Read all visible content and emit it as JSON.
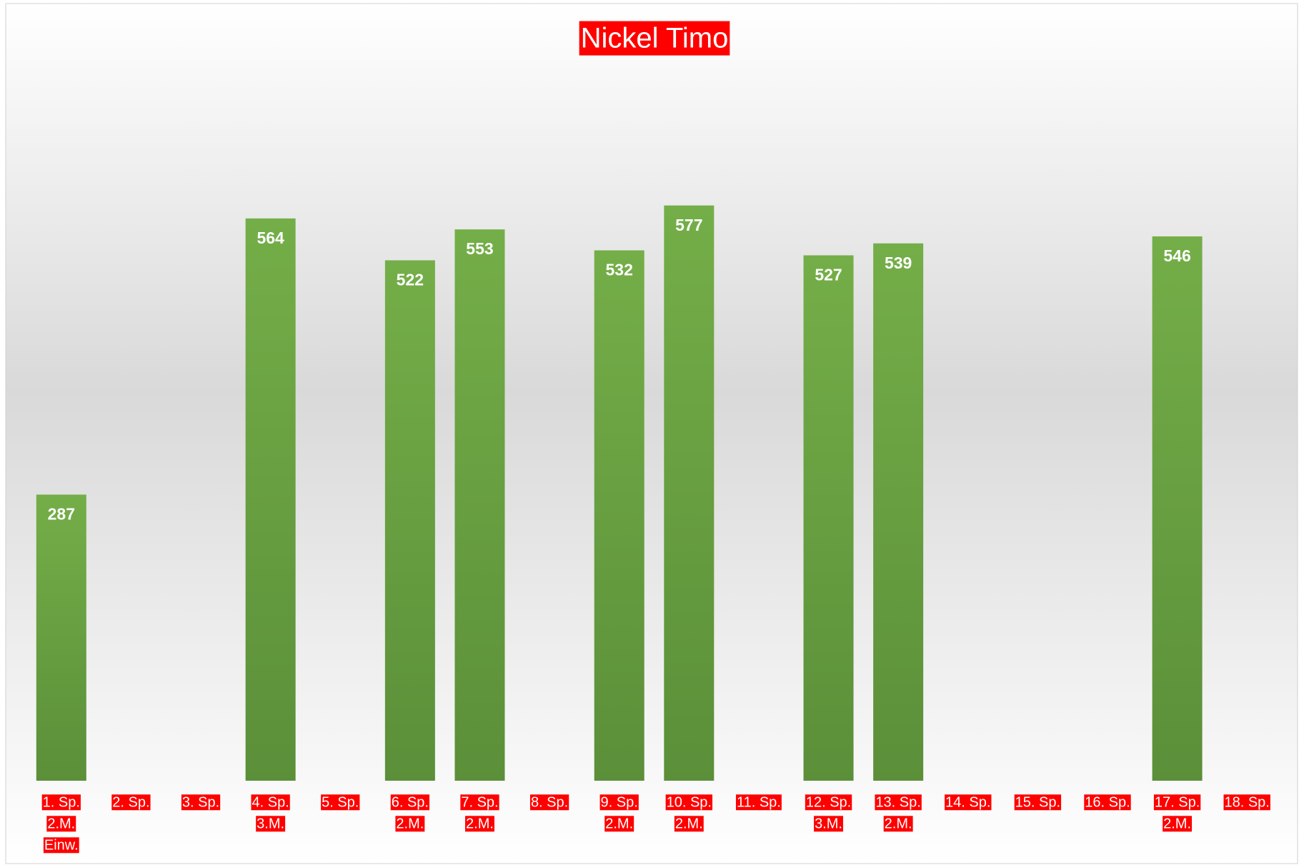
{
  "chart_data": {
    "type": "bar",
    "title": "Nickel Timo",
    "categories": [
      [
        "1. Sp.",
        "2.M.",
        "Einw."
      ],
      [
        "2. Sp."
      ],
      [
        "3. Sp."
      ],
      [
        "4. Sp.",
        "3.M."
      ],
      [
        "5. Sp."
      ],
      [
        "6. Sp.",
        "2.M."
      ],
      [
        "7. Sp.",
        "2.M."
      ],
      [
        "8. Sp."
      ],
      [
        "9. Sp.",
        "2.M."
      ],
      [
        "10. Sp.",
        "2.M."
      ],
      [
        "11. Sp."
      ],
      [
        "12. Sp.",
        "3.M."
      ],
      [
        "13. Sp.",
        "2.M."
      ],
      [
        "14. Sp."
      ],
      [
        "15. Sp."
      ],
      [
        "16. Sp."
      ],
      [
        "17. Sp.",
        "2.M."
      ],
      [
        "18. Sp."
      ]
    ],
    "values": [
      287,
      null,
      null,
      564,
      null,
      522,
      553,
      null,
      532,
      577,
      null,
      527,
      539,
      null,
      null,
      null,
      546,
      null
    ],
    "color": "#70ad47",
    "label_background": "#ff0000",
    "title_background": "#ff0000",
    "ylim": [
      0,
      700
    ]
  }
}
